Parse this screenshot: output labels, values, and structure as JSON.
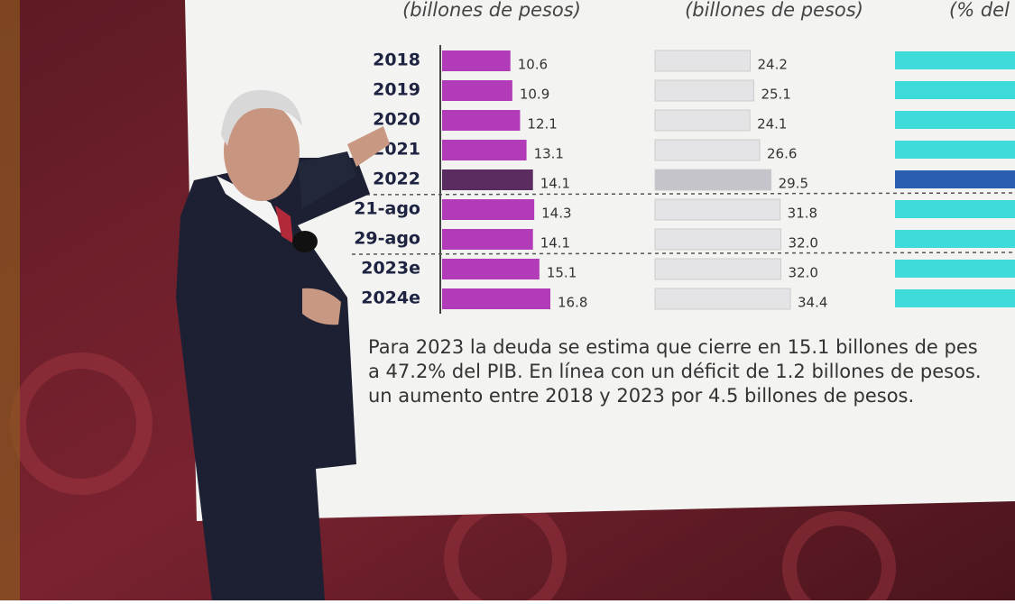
{
  "chart_data": [
    {
      "type": "bar",
      "orientation": "horizontal",
      "subtitle": "(billones de pesos)",
      "categories": [
        "2018",
        "2019",
        "2020",
        "2021",
        "2022",
        "21-ago",
        "29-ago",
        "2023e",
        "2024e"
      ],
      "values": [
        10.6,
        10.9,
        12.1,
        13.1,
        14.1,
        14.3,
        14.1,
        15.1,
        16.8
      ],
      "colors": [
        "#b23cb8",
        "#b23cb8",
        "#b23cb8",
        "#b23cb8",
        "#5b2c60",
        "#b23cb8",
        "#b23cb8",
        "#b23cb8",
        "#b23cb8"
      ]
    },
    {
      "type": "bar",
      "orientation": "horizontal",
      "subtitle": "(billones de pesos)",
      "values": [
        24.2,
        25.1,
        24.1,
        26.6,
        29.5,
        31.8,
        32.0,
        32.0,
        34.4
      ],
      "value_labels": [
        "24.2",
        "25.1",
        "24.1",
        "26.6",
        "29.5",
        "31.8",
        "32.0",
        "32.0",
        "34.4"
      ],
      "colors": [
        "#e4e4e6",
        "#e4e4e6",
        "#e4e4e6",
        "#e4e4e6",
        "#c4c4ca",
        "#e4e4e6",
        "#e4e4e6",
        "#e4e4e6",
        "#e4e4e6"
      ]
    },
    {
      "type": "bar",
      "orientation": "horizontal",
      "subtitle": "(% del"
    }
  ],
  "note": [
    "Para 2023 la deuda se estima que cierre en 15.1 billones de pes",
    "a 47.2% del PIB. En línea con un déficit de 1.2 billones de pesos.",
    "un aumento entre 2018 y 2023 por 4.5 billones de pesos."
  ]
}
